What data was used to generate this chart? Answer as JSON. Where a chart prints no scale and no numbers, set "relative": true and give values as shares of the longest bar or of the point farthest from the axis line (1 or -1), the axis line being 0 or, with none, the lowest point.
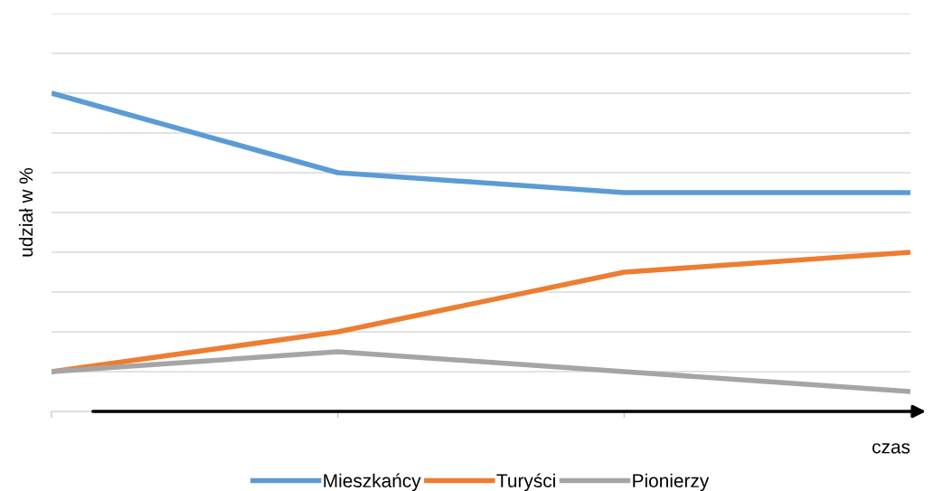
{
  "chart_data": {
    "type": "line",
    "relative": true,
    "xlabel": "czas",
    "ylabel": "udział w %",
    "categories": [
      null,
      null,
      null,
      null
    ],
    "grid": "y",
    "legend": "bottom",
    "marker": "none",
    "line_style": "solid",
    "series": [
      {
        "name": "Mieszkańcy",
        "color": "#5b9bd5",
        "values": [
          1,
          0.75,
          0.6875,
          0.6875
        ]
      },
      {
        "name": "Turyści",
        "color": "#ed7d31",
        "values": [
          0.125,
          0.25,
          0.4375,
          0.5
        ]
      },
      {
        "name": "Pionierzy",
        "color": "#a5a5a5",
        "values": [
          0.125,
          0.1875,
          0.125,
          0.0625
        ]
      }
    ]
  }
}
